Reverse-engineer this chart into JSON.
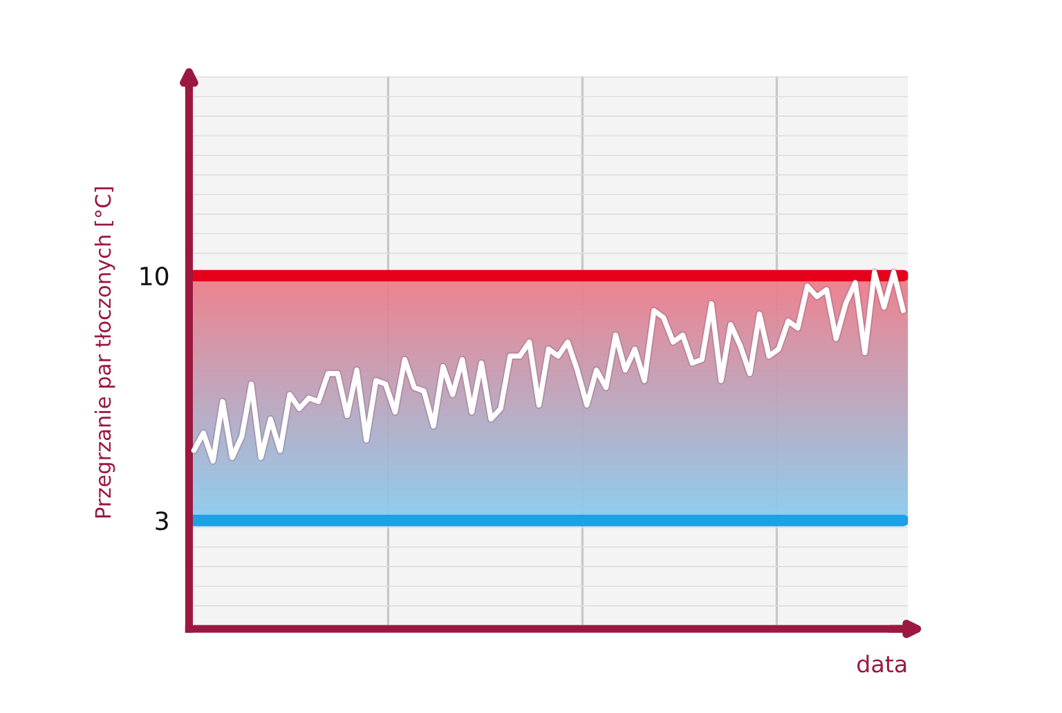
{
  "chart_data": {
    "type": "line",
    "ylabel": "Przegrzanie par tłoczonych [°C]",
    "xlabel": "data",
    "categories": [
      null,
      null,
      null,
      null,
      null,
      null,
      null,
      null,
      null,
      null,
      null,
      null,
      null,
      null,
      null,
      null,
      null,
      null,
      null,
      null,
      null,
      null,
      null,
      null,
      null,
      null,
      null,
      null,
      null,
      null,
      null,
      null,
      null,
      null,
      null,
      null,
      null,
      null,
      null,
      null,
      null,
      null,
      null,
      null,
      null,
      null,
      null,
      null,
      null,
      null,
      null,
      null,
      null,
      null,
      null,
      null,
      null,
      null,
      null,
      null,
      null,
      null,
      null,
      null,
      null,
      null,
      null,
      null,
      null,
      null,
      null,
      null,
      null,
      null,
      null
    ],
    "series": [
      {
        "color": "#ffffff",
        "values": [
          5.0,
          5.5,
          4.7,
          6.4,
          4.8,
          5.4,
          6.9,
          4.8,
          5.9,
          5.0,
          6.6,
          6.2,
          6.5,
          6.4,
          7.2,
          7.2,
          6.0,
          7.3,
          5.3,
          7.0,
          6.9,
          6.1,
          7.6,
          6.8,
          6.7,
          5.7,
          7.4,
          6.6,
          7.6,
          6.1,
          7.5,
          5.9,
          6.2,
          7.7,
          7.7,
          8.1,
          6.3,
          7.9,
          7.7,
          8.1,
          7.3,
          6.3,
          7.3,
          6.8,
          8.3,
          7.3,
          7.9,
          7.0,
          9.0,
          8.8,
          8.1,
          8.3,
          7.5,
          7.6,
          9.2,
          7.0,
          8.6,
          8.0,
          7.2,
          8.9,
          7.7,
          7.9,
          8.7,
          8.5,
          9.7,
          9.4,
          9.6,
          8.2,
          9.2,
          9.8,
          7.8,
          10.1,
          9.1,
          10.1,
          9.0
        ]
      }
    ],
    "ylim": [
      -0.1,
      15.7
    ],
    "yticks": [
      3,
      10
    ],
    "ref_lines": [
      {
        "axis": "y",
        "value": 10,
        "color": "#e60019"
      },
      {
        "axis": "y",
        "value": 3,
        "color": "#1ea0e6"
      }
    ],
    "bands": [
      {
        "axis": "y",
        "from": 3,
        "to": 10
      }
    ],
    "grid": true,
    "marker": "none",
    "line_style": "solid"
  }
}
